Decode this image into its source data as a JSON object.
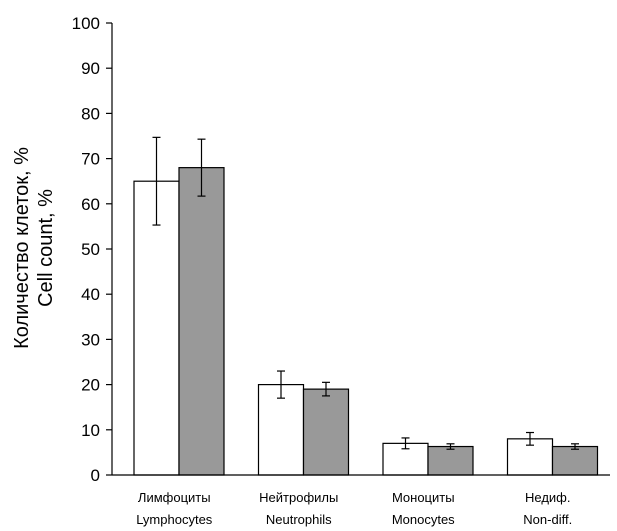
{
  "chart_data": {
    "type": "bar",
    "ylabel_ru": "Количество клеток, %",
    "ylabel_en": "Cell count, %",
    "ylim": [
      0,
      100
    ],
    "yticks": [
      "0",
      "10",
      "20",
      "30",
      "40",
      "50",
      "60",
      "70",
      "80",
      "90",
      "100"
    ],
    "categories": [
      {
        "ru": "Лимфоциты",
        "en": "Lymphocytes"
      },
      {
        "ru": "Нейтрофилы",
        "en": "Neutrophils"
      },
      {
        "ru": "Моноциты",
        "en": "Monocytes"
      },
      {
        "ru": "Недиф.",
        "en": "Non-diff."
      }
    ],
    "series": [
      {
        "color": "#ffffff",
        "values": [
          65,
          20,
          7,
          8
        ],
        "errors": [
          9.7,
          3,
          1.2,
          1.4
        ]
      },
      {
        "color": "#999999",
        "values": [
          68,
          19,
          6.3,
          6.3
        ],
        "errors": [
          6.3,
          1.5,
          0.6,
          0.6
        ]
      }
    ],
    "grid": false,
    "legend": "none"
  }
}
